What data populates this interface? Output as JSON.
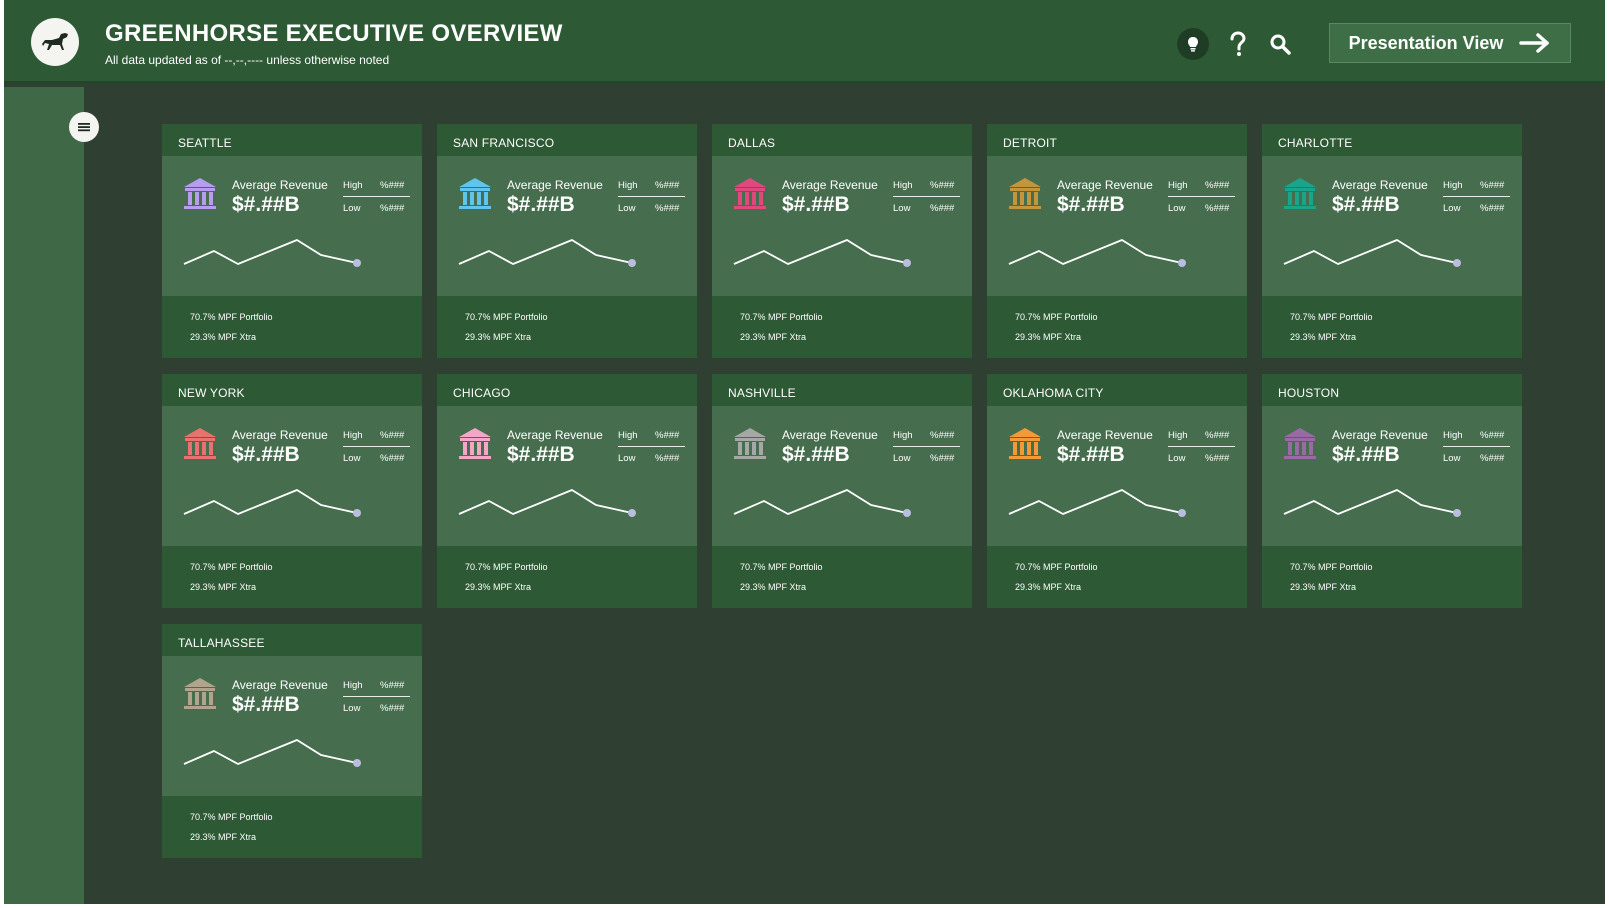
{
  "header": {
    "title": "GREENHORSE EXECUTIVE OVERVIEW",
    "subtitle": "All data updated as of --,--,---- unless otherwise noted",
    "presentation_label": "Presentation View"
  },
  "icons": {
    "logo": "horse-icon",
    "bulb": "lightbulb-icon",
    "help": "question-icon",
    "search": "search-icon",
    "arrow": "arrow-right-icon",
    "menu": "hamburger-icon",
    "bank": "bank-icon"
  },
  "colors": {
    "header_bg": "#2d5935",
    "page_bg": "#2f3f32",
    "sidebar_bg": "#3f6847",
    "card_bg": "#2d5935",
    "card_body": "#466e4e",
    "sparkline_dot": "#b9bddf"
  },
  "cards": [
    {
      "city": "SEATTLE",
      "icon_color": "#b79cf0",
      "label": "Average Revenue",
      "value": "$#.##B",
      "high_label": "High",
      "high_value": "%###",
      "low_label": "Low",
      "low_value": "%###",
      "portfolio": "70.7% MPF Portfolio",
      "xtra": "29.3% MPF Xtra"
    },
    {
      "city": "SAN FRANCISCO",
      "icon_color": "#5fc4ee",
      "label": "Average Revenue",
      "value": "$#.##B",
      "high_label": "High",
      "high_value": "%###",
      "low_label": "Low",
      "low_value": "%###",
      "portfolio": "70.7% MPF Portfolio",
      "xtra": "29.3% MPF Xtra"
    },
    {
      "city": "DALLAS",
      "icon_color": "#e0497e",
      "label": "Average Revenue",
      "value": "$#.##B",
      "high_label": "High",
      "high_value": "%###",
      "low_label": "Low",
      "low_value": "%###",
      "portfolio": "70.7% MPF Portfolio",
      "xtra": "29.3% MPF Xtra"
    },
    {
      "city": "DETROIT",
      "icon_color": "#c3963d",
      "label": "Average Revenue",
      "value": "$#.##B",
      "high_label": "High",
      "high_value": "%###",
      "low_label": "Low",
      "low_value": "%###",
      "portfolio": "70.7% MPF Portfolio",
      "xtra": "29.3% MPF Xtra"
    },
    {
      "city": "CHARLOTTE",
      "icon_color": "#1aa58a",
      "label": "Average Revenue",
      "value": "$#.##B",
      "high_label": "High",
      "high_value": "%###",
      "low_label": "Low",
      "low_value": "%###",
      "portfolio": "70.7% MPF Portfolio",
      "xtra": "29.3% MPF Xtra"
    },
    {
      "city": "NEW YORK",
      "icon_color": "#e8736e",
      "label": "Average Revenue",
      "value": "$#.##B",
      "high_label": "High",
      "high_value": "%###",
      "low_label": "Low",
      "low_value": "%###",
      "portfolio": "70.7% MPF Portfolio",
      "xtra": "29.3% MPF Xtra"
    },
    {
      "city": "CHICAGO",
      "icon_color": "#f3a6c8",
      "label": "Average Revenue",
      "value": "$#.##B",
      "high_label": "High",
      "high_value": "%###",
      "low_label": "Low",
      "low_value": "%###",
      "portfolio": "70.7% MPF Portfolio",
      "xtra": "29.3% MPF Xtra"
    },
    {
      "city": "NASHVILLE",
      "icon_color": "#a6a8a6",
      "label": "Average Revenue",
      "value": "$#.##B",
      "high_label": "High",
      "high_value": "%###",
      "low_label": "Low",
      "low_value": "%###",
      "portfolio": "70.7% MPF Portfolio",
      "xtra": "29.3% MPF Xtra"
    },
    {
      "city": "OKLAHOMA CITY",
      "icon_color": "#f29a38",
      "label": "Average Revenue",
      "value": "$#.##B",
      "high_label": "High",
      "high_value": "%###",
      "low_label": "Low",
      "low_value": "%###",
      "portfolio": "70.7% MPF Portfolio",
      "xtra": "29.3% MPF Xtra"
    },
    {
      "city": "HOUSTON",
      "icon_color": "#9a6aa5",
      "label": "Average Revenue",
      "value": "$#.##B",
      "high_label": "High",
      "high_value": "%###",
      "low_label": "Low",
      "low_value": "%###",
      "portfolio": "70.7% MPF Portfolio",
      "xtra": "29.3% MPF Xtra"
    },
    {
      "city": "TALLAHASSEE",
      "icon_color": "#b2a48c",
      "label": "Average Revenue",
      "value": "$#.##B",
      "high_label": "High",
      "high_value": "%###",
      "low_label": "Low",
      "low_value": "%###",
      "portfolio": "70.7% MPF Portfolio",
      "xtra": "29.3% MPF Xtra"
    }
  ]
}
